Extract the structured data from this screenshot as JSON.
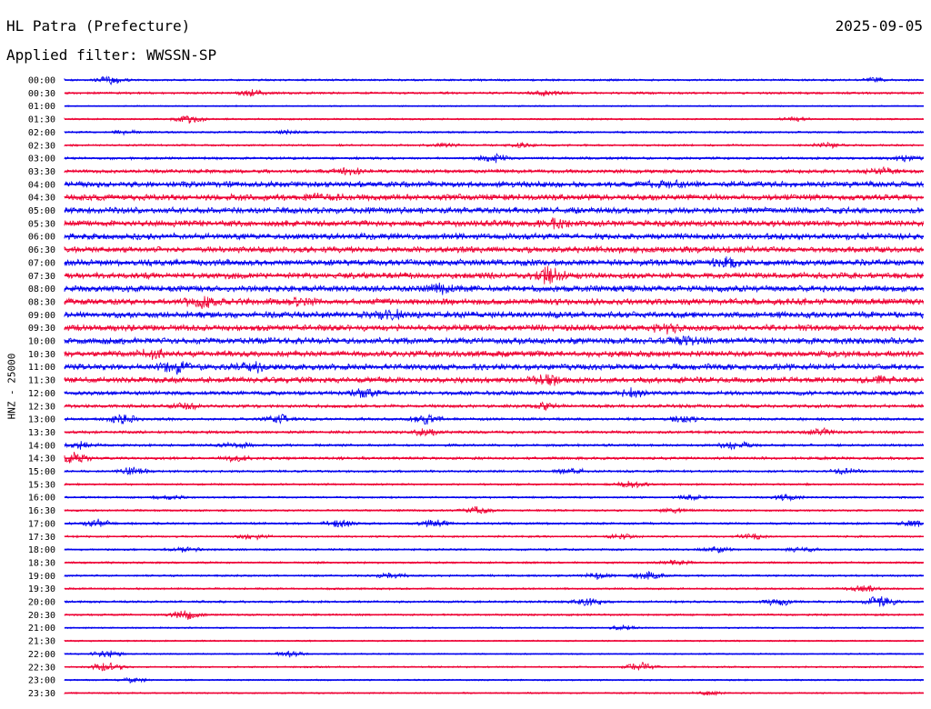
{
  "header": {
    "station": "HL Patra (Prefecture)",
    "date": "2025-09-05",
    "filter": "Applied filter: WWSSN-SP"
  },
  "chart_data": {
    "type": "helicorder",
    "ylabel": "HNZ - 25000",
    "colors": [
      "#0000ee",
      "#ee0033"
    ],
    "x_minutes_per_line": 30,
    "lines": [
      {
        "t": "00:00",
        "level": 0.2,
        "events": [
          [
            0.055,
            0.8
          ],
          [
            0.94,
            0.5
          ]
        ]
      },
      {
        "t": "00:30",
        "level": 0.25,
        "events": [
          [
            0.22,
            0.7
          ],
          [
            0.56,
            0.5
          ]
        ]
      },
      {
        "t": "01:00",
        "level": 0.08,
        "events": []
      },
      {
        "t": "01:30",
        "level": 0.15,
        "events": [
          [
            0.145,
            1.0
          ],
          [
            0.85,
            0.5
          ]
        ]
      },
      {
        "t": "02:00",
        "level": 0.2,
        "events": [
          [
            0.07,
            0.4
          ],
          [
            0.26,
            0.4
          ]
        ]
      },
      {
        "t": "02:30",
        "level": 0.2,
        "events": [
          [
            0.44,
            0.4
          ],
          [
            0.53,
            0.5
          ],
          [
            0.89,
            0.6
          ]
        ]
      },
      {
        "t": "03:00",
        "level": 0.3,
        "events": [
          [
            0.5,
            0.9
          ],
          [
            0.98,
            0.7
          ]
        ]
      },
      {
        "t": "03:30",
        "level": 0.5,
        "events": [
          [
            0.33,
            0.6
          ],
          [
            0.95,
            0.7
          ]
        ]
      },
      {
        "t": "04:00",
        "level": 0.95,
        "events": [
          [
            0.7,
            0.8
          ]
        ]
      },
      {
        "t": "04:30",
        "level": 1.0,
        "events": [
          [
            0.3,
            0.8
          ]
        ]
      },
      {
        "t": "05:00",
        "level": 1.0,
        "events": []
      },
      {
        "t": "05:30",
        "level": 1.0,
        "events": [
          [
            0.57,
            0.9
          ]
        ]
      },
      {
        "t": "06:00",
        "level": 1.0,
        "events": []
      },
      {
        "t": "06:30",
        "level": 1.0,
        "events": []
      },
      {
        "t": "07:00",
        "level": 1.0,
        "events": [
          [
            0.77,
            0.9
          ]
        ]
      },
      {
        "t": "07:30",
        "level": 1.0,
        "events": [
          [
            0.565,
            1.8
          ]
        ]
      },
      {
        "t": "08:00",
        "level": 1.0,
        "events": [
          [
            0.44,
            1.2
          ]
        ]
      },
      {
        "t": "08:30",
        "level": 1.0,
        "events": [
          [
            0.16,
            1.2
          ],
          [
            0.28,
            0.9
          ]
        ]
      },
      {
        "t": "09:00",
        "level": 1.0,
        "events": [
          [
            0.38,
            0.9
          ]
        ]
      },
      {
        "t": "09:30",
        "level": 1.0,
        "events": [
          [
            0.7,
            0.9
          ]
        ]
      },
      {
        "t": "10:00",
        "level": 1.0,
        "events": [
          [
            0.72,
            0.9
          ]
        ]
      },
      {
        "t": "10:30",
        "level": 1.0,
        "events": [
          [
            0.1,
            1.0
          ]
        ]
      },
      {
        "t": "11:00",
        "level": 1.0,
        "events": [
          [
            0.13,
            1.0
          ],
          [
            0.22,
            0.9
          ]
        ]
      },
      {
        "t": "11:30",
        "level": 0.9,
        "events": [
          [
            0.56,
            1.2
          ],
          [
            0.95,
            0.9
          ]
        ]
      },
      {
        "t": "12:00",
        "level": 0.6,
        "events": [
          [
            0.35,
            1.0
          ],
          [
            0.66,
            0.9
          ]
        ]
      },
      {
        "t": "12:30",
        "level": 0.45,
        "events": [
          [
            0.14,
            0.6
          ],
          [
            0.56,
            0.6
          ]
        ]
      },
      {
        "t": "13:00",
        "level": 0.35,
        "events": [
          [
            0.07,
            1.2
          ],
          [
            0.25,
            1.0
          ],
          [
            0.42,
            1.1
          ],
          [
            0.72,
            0.8
          ]
        ]
      },
      {
        "t": "13:30",
        "level": 0.35,
        "events": [
          [
            0.42,
            0.8
          ],
          [
            0.88,
            0.8
          ]
        ]
      },
      {
        "t": "14:00",
        "level": 0.3,
        "events": [
          [
            0.02,
            0.8
          ],
          [
            0.2,
            0.7
          ],
          [
            0.78,
            0.9
          ]
        ]
      },
      {
        "t": "14:30",
        "level": 0.35,
        "events": [
          [
            0.01,
            1.3
          ],
          [
            0.2,
            0.6
          ]
        ]
      },
      {
        "t": "15:00",
        "level": 0.25,
        "events": [
          [
            0.08,
            0.9
          ],
          [
            0.59,
            0.7
          ],
          [
            0.91,
            0.7
          ]
        ]
      },
      {
        "t": "15:30",
        "level": 0.2,
        "events": [
          [
            0.66,
            0.8
          ]
        ]
      },
      {
        "t": "16:00",
        "level": 0.2,
        "events": [
          [
            0.12,
            0.6
          ],
          [
            0.73,
            0.6
          ],
          [
            0.84,
            0.7
          ]
        ]
      },
      {
        "t": "16:30",
        "level": 0.2,
        "events": [
          [
            0.48,
            0.8
          ],
          [
            0.71,
            0.5
          ]
        ]
      },
      {
        "t": "17:00",
        "level": 0.25,
        "events": [
          [
            0.04,
            0.8
          ],
          [
            0.32,
            0.9
          ],
          [
            0.43,
            0.8
          ],
          [
            0.99,
            0.7
          ]
        ]
      },
      {
        "t": "17:30",
        "level": 0.2,
        "events": [
          [
            0.22,
            0.6
          ],
          [
            0.65,
            0.6
          ],
          [
            0.8,
            0.6
          ]
        ]
      },
      {
        "t": "18:00",
        "level": 0.2,
        "events": [
          [
            0.14,
            0.6
          ],
          [
            0.76,
            0.7
          ],
          [
            0.86,
            0.6
          ]
        ]
      },
      {
        "t": "18:30",
        "level": 0.2,
        "events": [
          [
            0.71,
            0.6
          ]
        ]
      },
      {
        "t": "19:00",
        "level": 0.2,
        "events": [
          [
            0.38,
            0.7
          ],
          [
            0.62,
            0.7
          ],
          [
            0.68,
            1.0
          ]
        ]
      },
      {
        "t": "19:30",
        "level": 0.2,
        "events": [
          [
            0.93,
            0.7
          ]
        ]
      },
      {
        "t": "20:00",
        "level": 0.25,
        "events": [
          [
            0.61,
            0.9
          ],
          [
            0.83,
            0.9
          ],
          [
            0.95,
            1.4
          ]
        ]
      },
      {
        "t": "20:30",
        "level": 0.2,
        "events": [
          [
            0.14,
            1.2
          ]
        ]
      },
      {
        "t": "21:00",
        "level": 0.12,
        "events": [
          [
            0.65,
            0.5
          ]
        ]
      },
      {
        "t": "21:30",
        "level": 0.1,
        "events": []
      },
      {
        "t": "22:00",
        "level": 0.1,
        "events": [
          [
            0.05,
            0.9
          ],
          [
            0.26,
            0.6
          ]
        ]
      },
      {
        "t": "22:30",
        "level": 0.15,
        "events": [
          [
            0.05,
            1.0
          ],
          [
            0.67,
            1.0
          ]
        ]
      },
      {
        "t": "23:00",
        "level": 0.12,
        "events": [
          [
            0.08,
            0.5
          ]
        ]
      },
      {
        "t": "23:30",
        "level": 0.12,
        "events": [
          [
            0.75,
            0.4
          ]
        ]
      }
    ]
  }
}
